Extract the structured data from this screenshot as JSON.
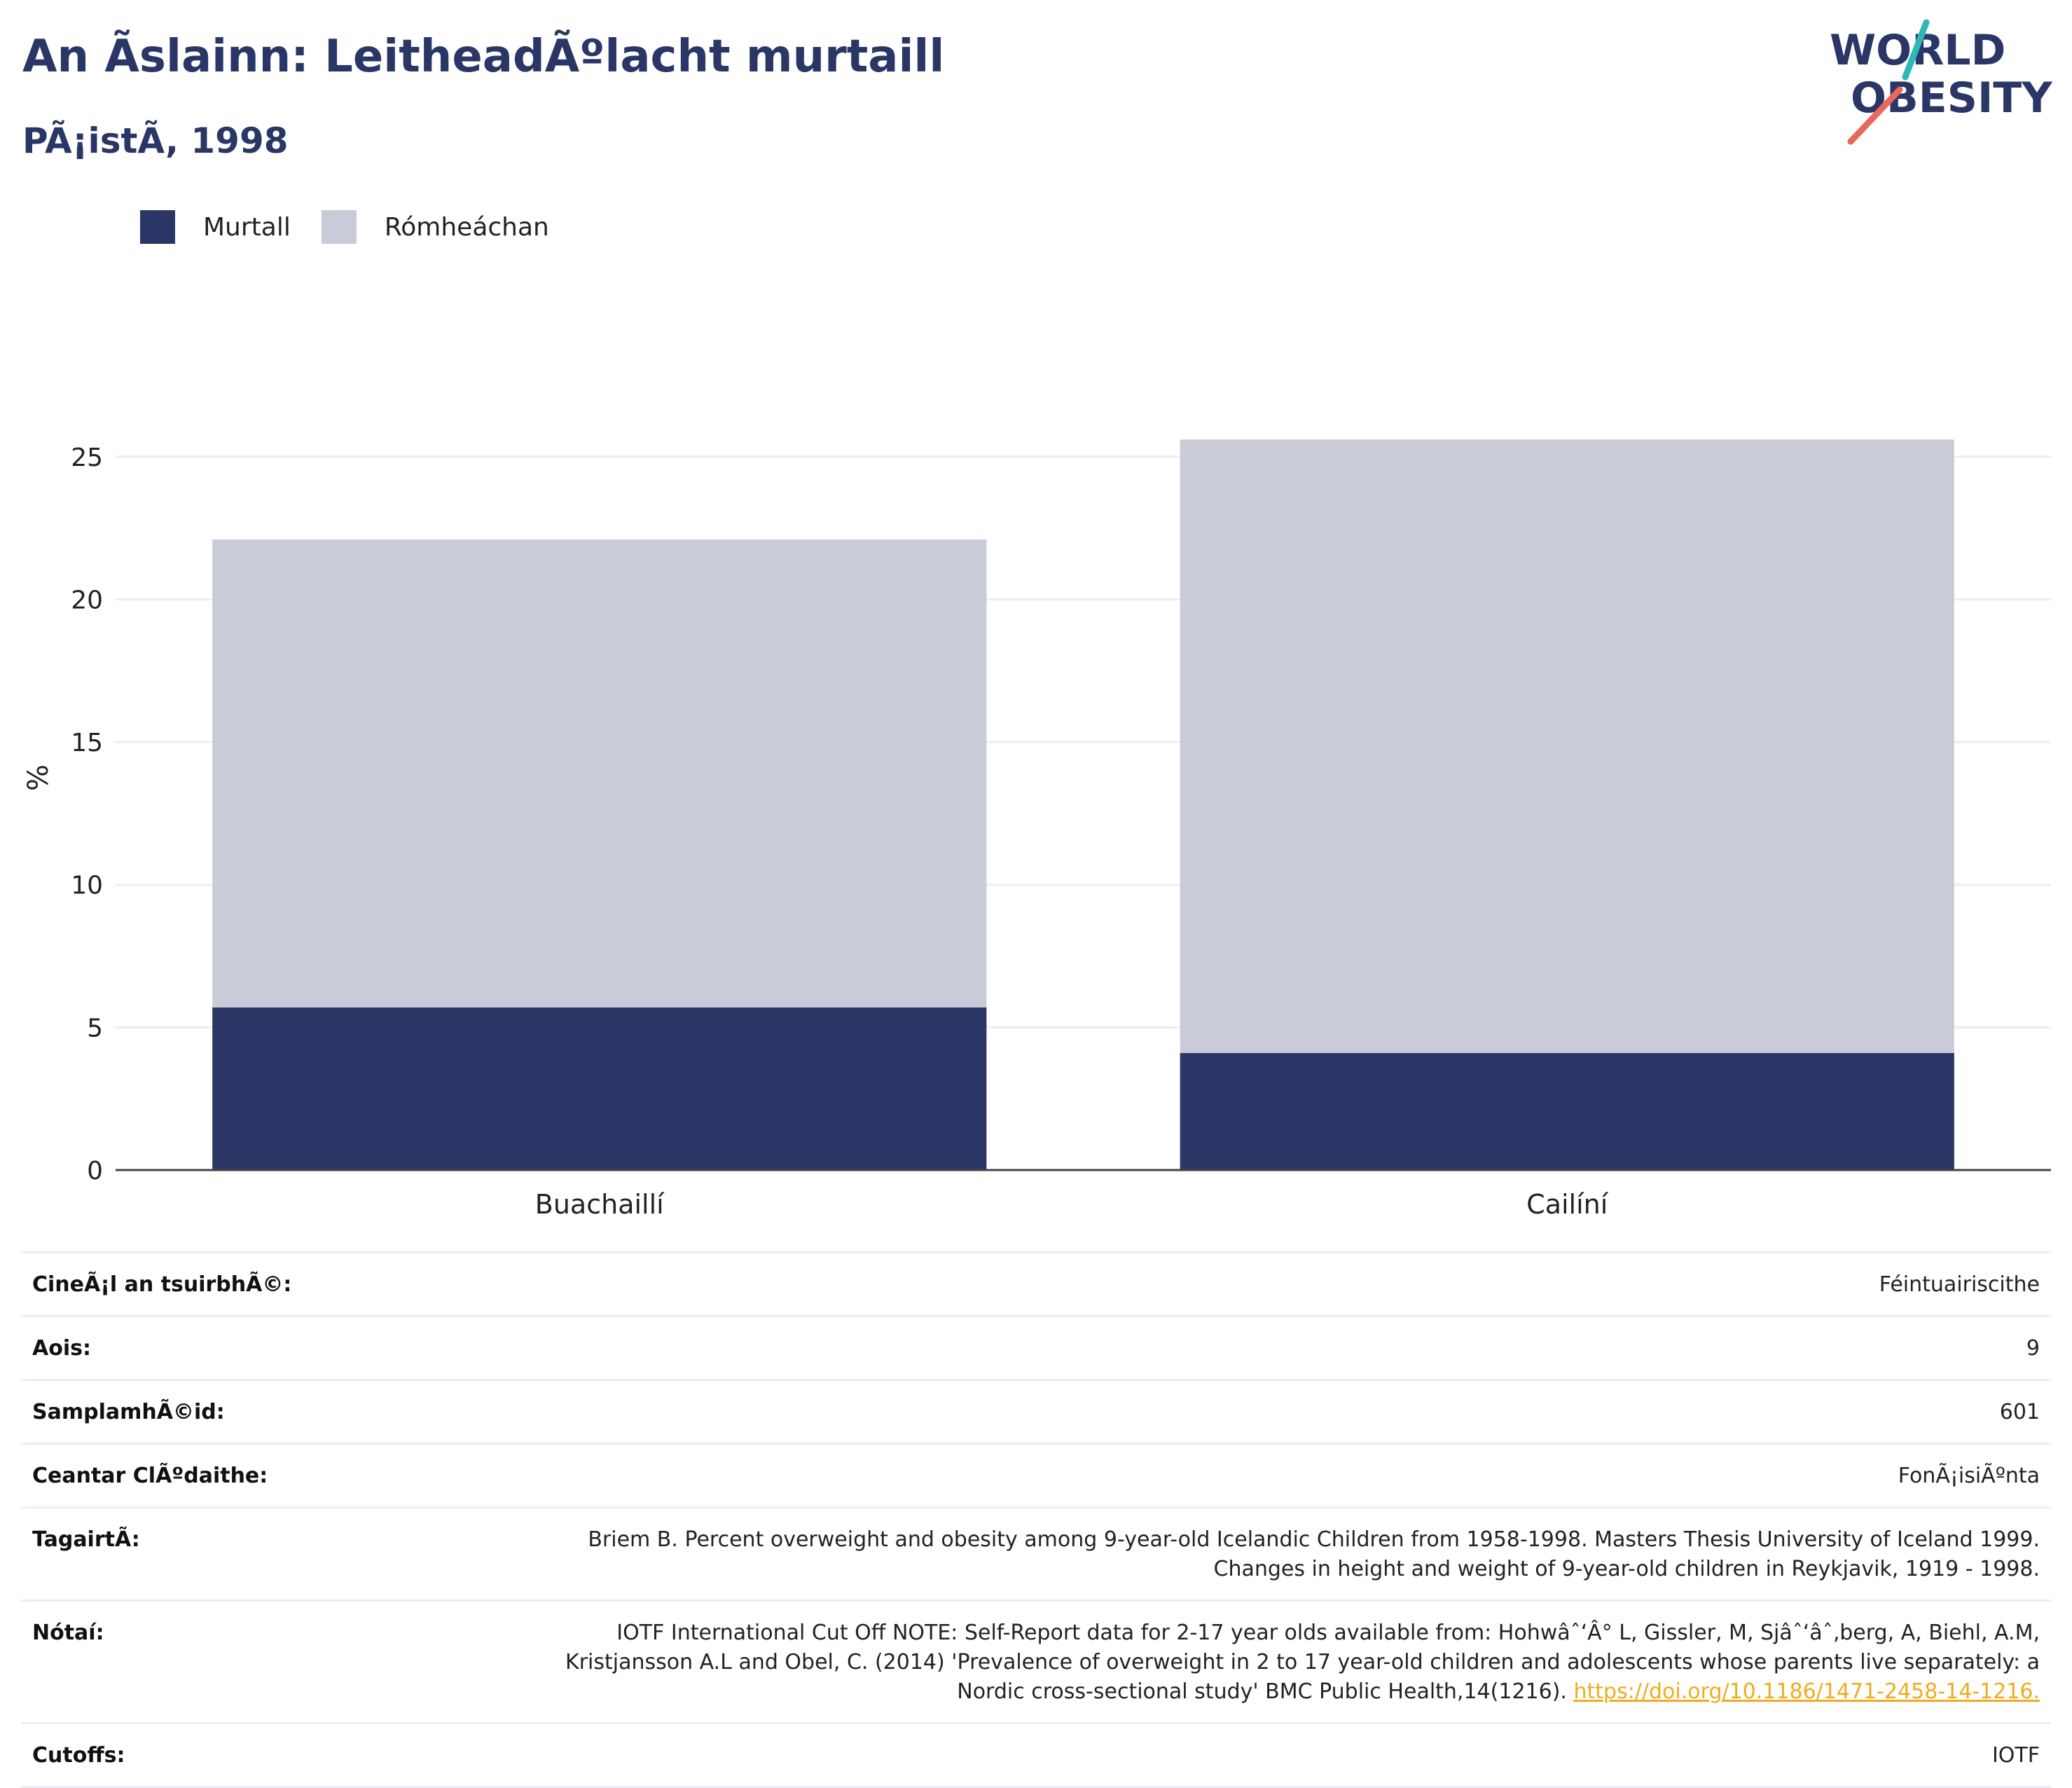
{
  "header": {
    "title": "An Ã­slainn: LeitheadÃºlacht murtaill",
    "subtitle": "PÃ¡istÃ, 1998"
  },
  "logo": {
    "line1": "WORLD",
    "line2": "OBESITY"
  },
  "colors": {
    "obese": "#2a3766",
    "overweight": "#c9ccd8",
    "accent_teal": "#2fb6b8",
    "accent_red": "#e8685a",
    "link": "#f0ab1e"
  },
  "legend": [
    {
      "label": "Murtall",
      "color": "#2a3766"
    },
    {
      "label": "Rómheáchan",
      "color": "#c9ccd8"
    }
  ],
  "chart_data": {
    "type": "bar",
    "stacked": true,
    "categories": [
      "Buachaillí",
      "Cailíní"
    ],
    "series": [
      {
        "name": "Murtall",
        "values": [
          5.7,
          4.1
        ]
      },
      {
        "name": "Rómheáchan",
        "values": [
          16.4,
          21.5
        ]
      }
    ],
    "title": "",
    "xlabel": "",
    "ylabel": "%",
    "ylim": [
      0,
      27.5
    ],
    "yticks": [
      0,
      5,
      10,
      15,
      20,
      25
    ],
    "grid": true,
    "legend_position": "top-left"
  },
  "info": {
    "survey_type": {
      "label": "CineÃ¡l an tsuirbhÃ©:",
      "value": "Féintuairiscithe"
    },
    "age": {
      "label": "Aois:",
      "value": "9"
    },
    "sample_size": {
      "label": "SamplamhÃ©id:",
      "value": "601"
    },
    "area": {
      "label": "Ceantar ClÃºdaithe:",
      "value": "FonÃ¡isiÃºnta"
    },
    "reference": {
      "label": "TagairtÃ:",
      "value": "Briem B. Percent overweight and obesity among 9-year-old Icelandic Children from 1958-1998. Masters Thesis University of Iceland 1999. Changes in height and weight of 9-year-old children in Reykjavik, 1919 - 1998."
    },
    "notes": {
      "label": "Nótaí:",
      "value": "IOTF International Cut Off NOTE: Self-Report data for 2-17 year olds available from: Hohwâˆ‘Â° L, Gissler, M, Sjâˆ‘âˆ‚berg, A, Biehl, A.M, Kristjansson A.L and Obel, C. (2014) 'Prevalence of overweight in 2 to 17 year-old children and adolescents whose parents live separately: a Nordic cross-sectional study' BMC Public Health,14(1216). ",
      "link": "https://doi.org/10.1186/1471-2458-14-1216."
    },
    "cutoffs": {
      "label": "Cutoffs:",
      "value": "IOTF"
    }
  }
}
